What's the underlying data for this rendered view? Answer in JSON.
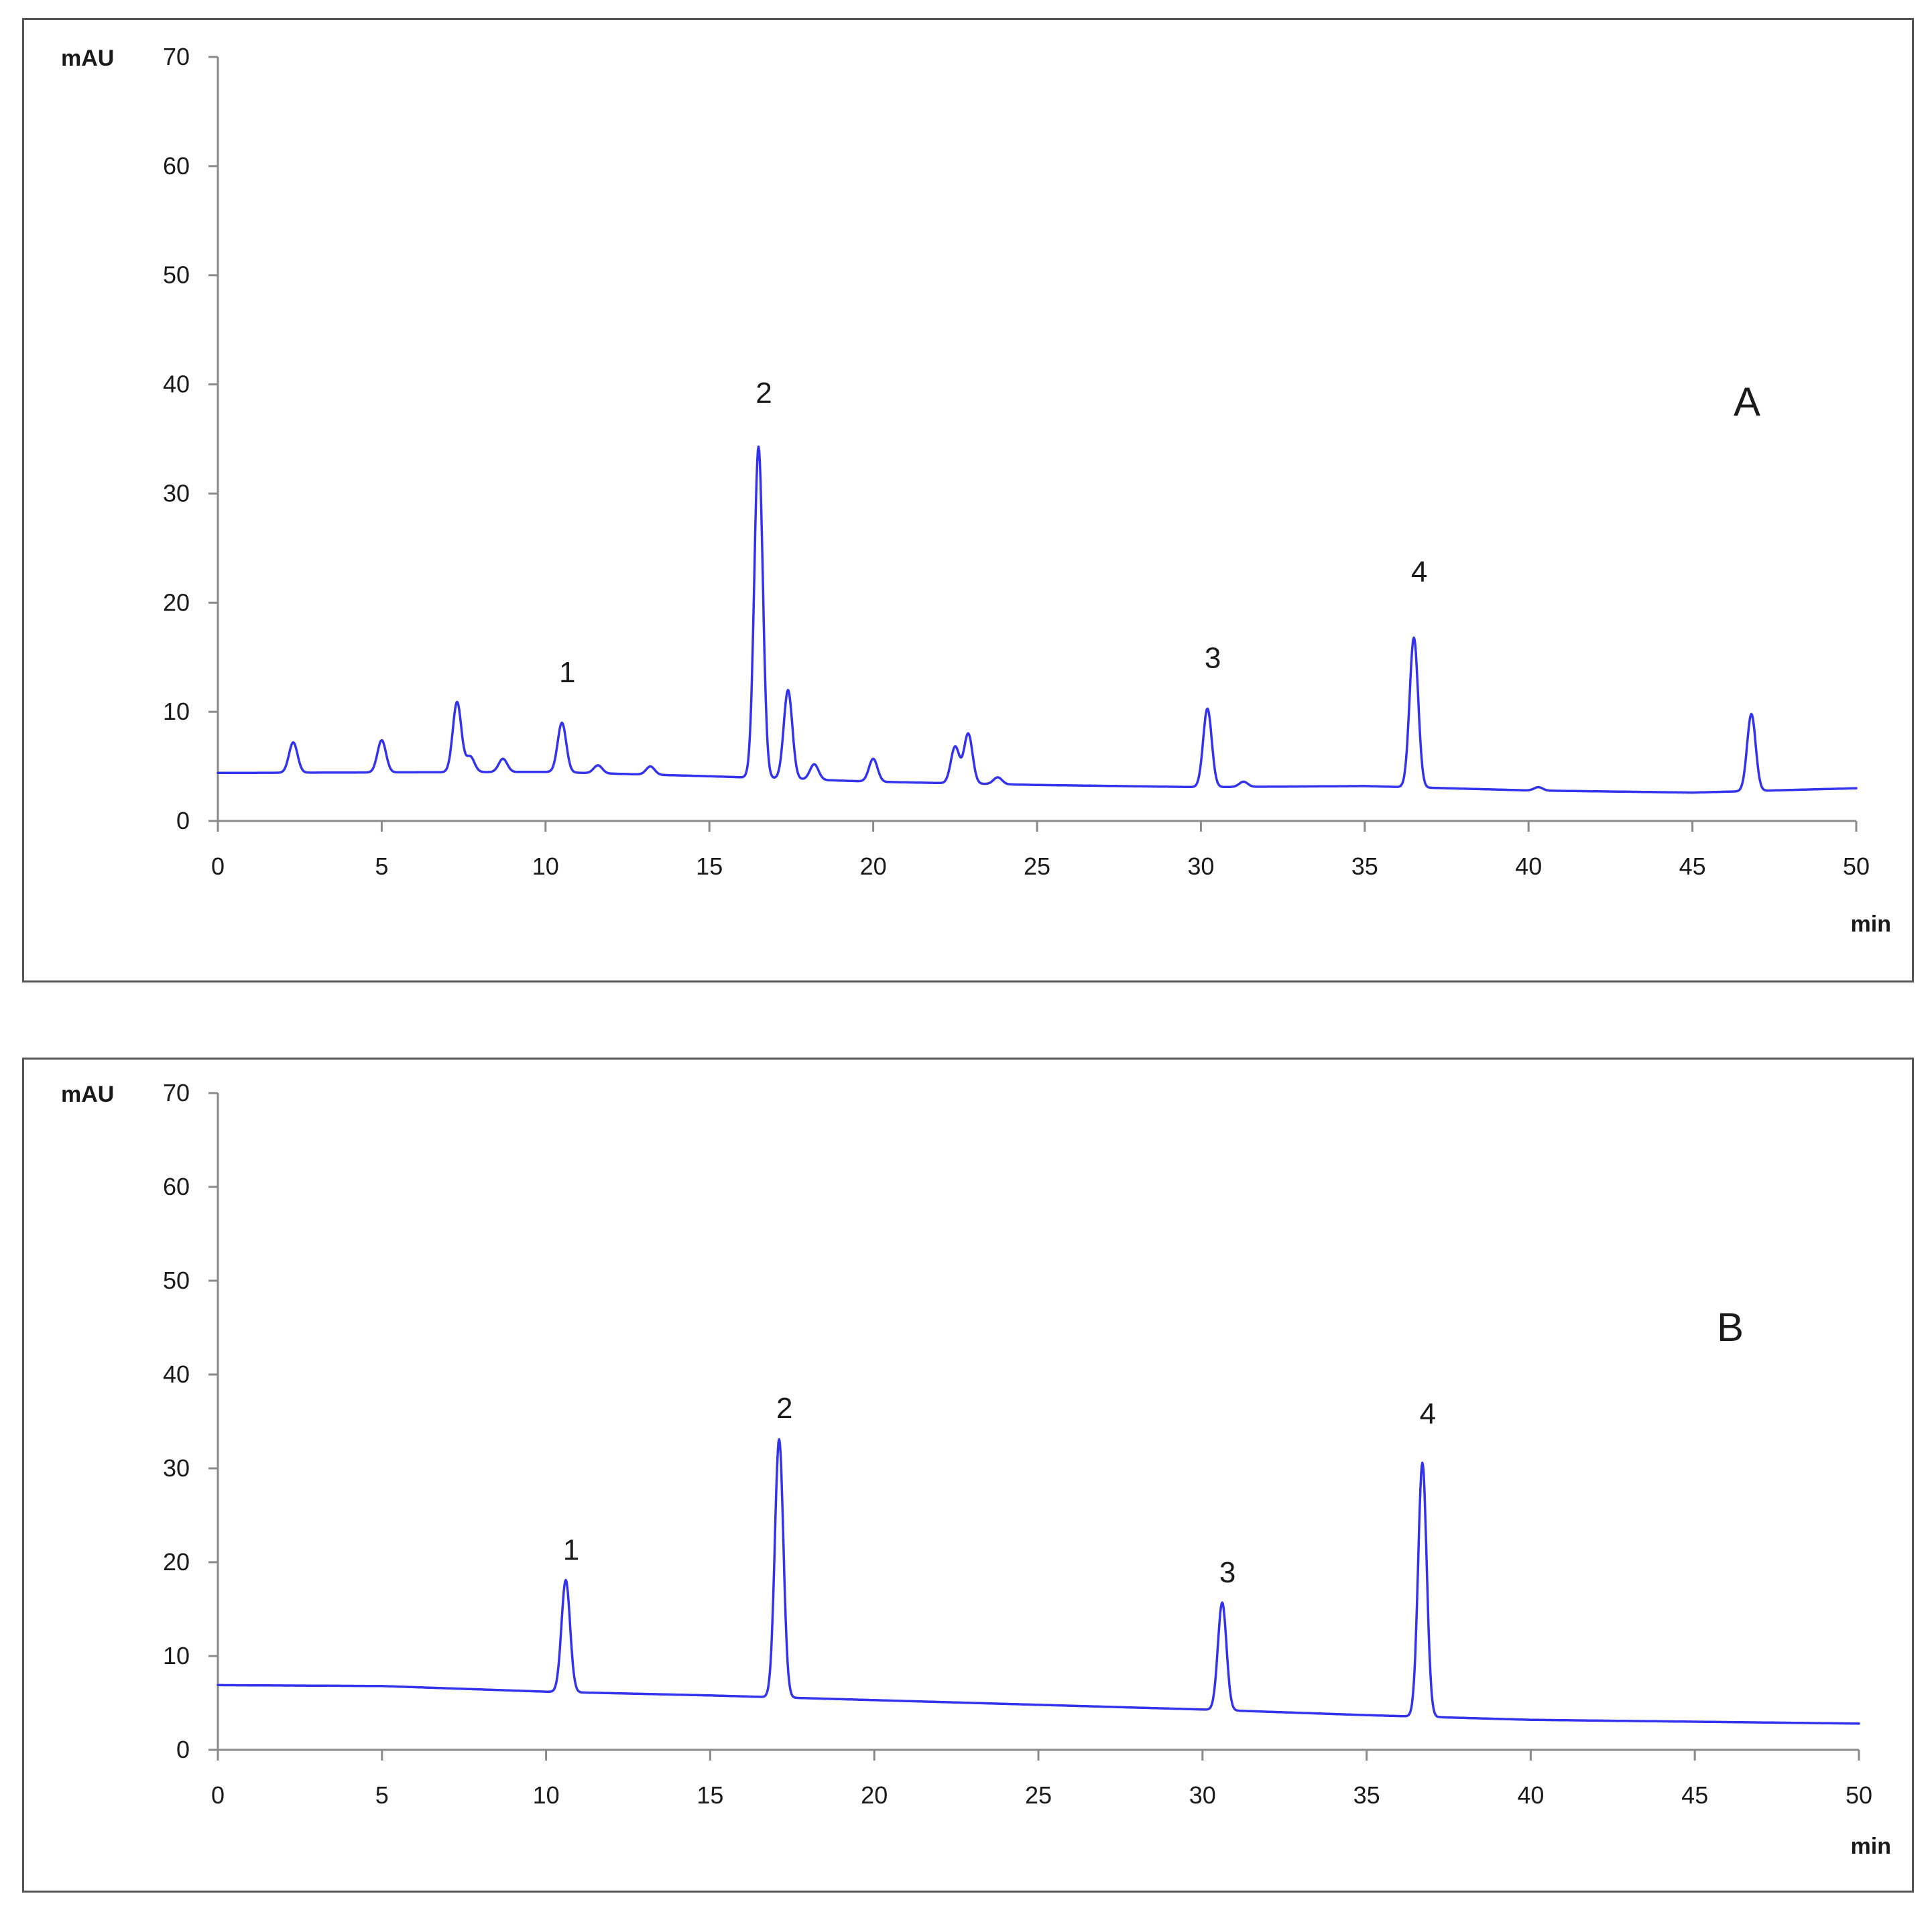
{
  "colors": {
    "trace": "#3333ee",
    "axis": "#8a8a8a",
    "border": "#555555",
    "text": "#1a1a1a"
  },
  "chart_data": [
    {
      "type": "line",
      "panel_label": "A",
      "ylabel": "mAU",
      "xlabel": "min",
      "xlim": [
        0,
        50
      ],
      "ylim": [
        0,
        70
      ],
      "x_ticks": [
        "0",
        "5",
        "10",
        "15",
        "20",
        "25",
        "30",
        "35",
        "40",
        "45",
        "50"
      ],
      "y_ticks": [
        "0",
        "10",
        "20",
        "30",
        "40",
        "50",
        "60",
        "70"
      ],
      "baseline": [
        [
          0,
          4.4
        ],
        [
          10,
          4.5
        ],
        [
          15,
          4.1
        ],
        [
          20,
          3.6
        ],
        [
          25,
          3.3
        ],
        [
          30,
          3.1
        ],
        [
          35,
          3.2
        ],
        [
          40,
          2.8
        ],
        [
          45,
          2.6
        ],
        [
          50,
          3.0
        ]
      ],
      "peaks": [
        {
          "x": 2.3,
          "y": 7.2
        },
        {
          "x": 5.0,
          "y": 7.4
        },
        {
          "x": 7.3,
          "y": 10.9
        },
        {
          "x": 7.7,
          "y": 5.9
        },
        {
          "x": 8.7,
          "y": 5.7
        },
        {
          "x": 10.5,
          "y": 9.0,
          "label": "1",
          "label_y": 13.7
        },
        {
          "x": 11.6,
          "y": 5.1
        },
        {
          "x": 13.2,
          "y": 5.0
        },
        {
          "x": 16.5,
          "y": 34.3,
          "label": "2",
          "label_y": 39.3
        },
        {
          "x": 17.4,
          "y": 12.0
        },
        {
          "x": 18.2,
          "y": 5.2
        },
        {
          "x": 20.0,
          "y": 5.7
        },
        {
          "x": 22.5,
          "y": 6.8
        },
        {
          "x": 22.9,
          "y": 8.0
        },
        {
          "x": 23.8,
          "y": 4.0
        },
        {
          "x": 30.2,
          "y": 10.3,
          "label": "3",
          "label_y": 15.0
        },
        {
          "x": 31.3,
          "y": 3.6
        },
        {
          "x": 36.5,
          "y": 16.8,
          "label": "4",
          "label_y": 22.9
        },
        {
          "x": 40.3,
          "y": 3.1
        },
        {
          "x": 46.8,
          "y": 9.8
        }
      ]
    },
    {
      "type": "line",
      "panel_label": "B",
      "ylabel": "mAU",
      "xlabel": "min",
      "xlim": [
        0,
        50
      ],
      "ylim": [
        0,
        70
      ],
      "x_ticks": [
        "0",
        "5",
        "10",
        "15",
        "20",
        "25",
        "30",
        "35",
        "40",
        "45",
        "50"
      ],
      "y_ticks": [
        "0",
        "10",
        "20",
        "30",
        "40",
        "50",
        "60",
        "70"
      ],
      "baseline": [
        [
          0,
          6.9
        ],
        [
          5,
          6.8
        ],
        [
          10,
          6.2
        ],
        [
          15,
          5.8
        ],
        [
          20,
          5.3
        ],
        [
          25,
          4.8
        ],
        [
          30,
          4.3
        ],
        [
          35,
          3.7
        ],
        [
          40,
          3.2
        ],
        [
          45,
          3.0
        ],
        [
          50,
          2.8
        ]
      ],
      "peaks": [
        {
          "x": 10.6,
          "y": 18.1,
          "label": "1",
          "label_y": 21.4
        },
        {
          "x": 17.1,
          "y": 33.1,
          "label": "2",
          "label_y": 36.5
        },
        {
          "x": 30.6,
          "y": 15.7,
          "label": "3",
          "label_y": 19.0
        },
        {
          "x": 36.7,
          "y": 30.6,
          "label": "4",
          "label_y": 35.9
        }
      ]
    }
  ]
}
